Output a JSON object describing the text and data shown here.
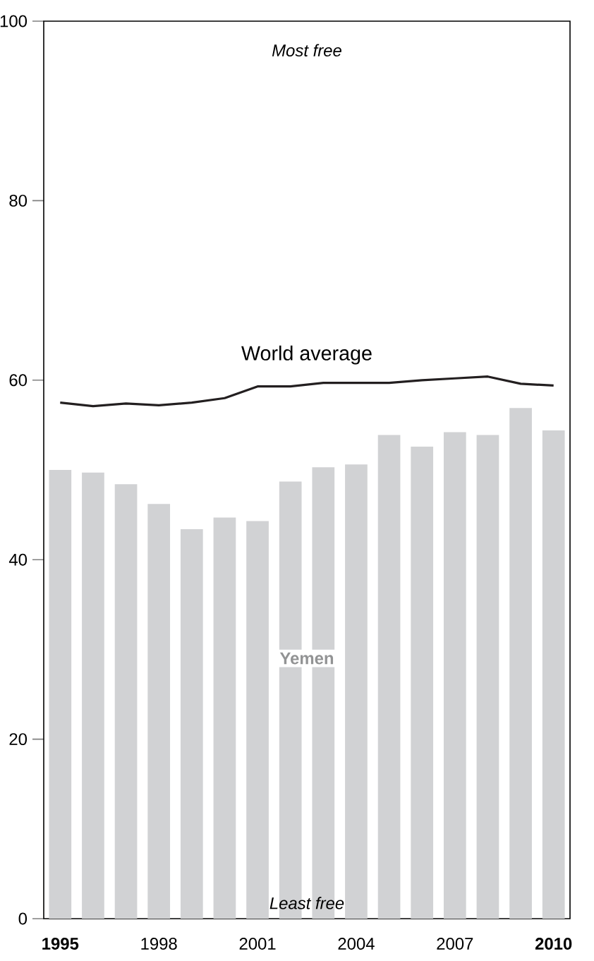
{
  "chart_data": {
    "type": "bar",
    "categories": [
      "1995",
      null,
      null,
      "1998",
      null,
      null,
      "2001",
      null,
      null,
      "2004",
      null,
      null,
      "2007",
      null,
      null,
      "2010"
    ],
    "series": [
      {
        "name": "Yemen",
        "color": "#d1d2d4",
        "values": [
          50.0,
          49.7,
          48.4,
          46.2,
          43.4,
          44.7,
          44.3,
          48.7,
          50.3,
          50.6,
          53.9,
          52.6,
          54.2,
          53.9,
          56.9,
          54.4
        ]
      },
      {
        "name": "World average",
        "type": "line",
        "color": "#231f20",
        "values": [
          57.5,
          57.1,
          57.4,
          57.2,
          57.5,
          58.0,
          59.3,
          59.3,
          59.7,
          59.7,
          59.7,
          60.0,
          60.2,
          60.4,
          59.6,
          59.4
        ]
      }
    ],
    "ylim": [
      0,
      100
    ],
    "yticks": [
      0,
      20,
      40,
      60,
      80,
      100
    ],
    "annotations": [
      "Most free",
      "Least free"
    ]
  }
}
